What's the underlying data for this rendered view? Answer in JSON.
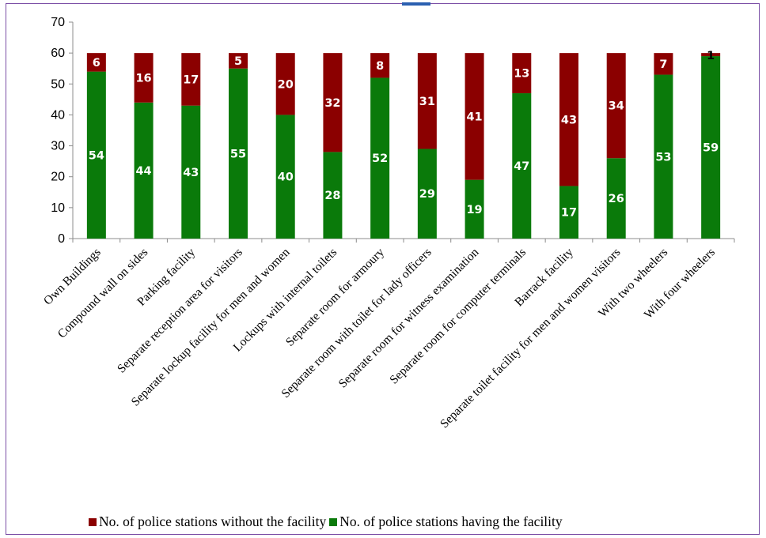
{
  "chart_data": {
    "type": "bar",
    "stacked": true,
    "categories": [
      "Own Buildings",
      "Compound wall on sides",
      "Parking facility",
      "Separate reception area for visitors",
      "Separate lockup facility for men and women",
      "Lockups with internal toilets",
      "Separate room for armoury",
      "Separate room with toilet for lady officers",
      "Separate room for witness examination",
      "Separate room for computer terminals",
      "Barrack facility",
      "Separate toilet facility for men and women visitors",
      "With two wheelers",
      "With four wheelers"
    ],
    "series": [
      {
        "name": "No. of police stations having the facility",
        "color": "#0a7a0a",
        "values": [
          54,
          44,
          43,
          55,
          40,
          28,
          52,
          29,
          19,
          47,
          17,
          26,
          53,
          59
        ]
      },
      {
        "name": "No. of police stations without the facility",
        "color": "#8b0000",
        "values": [
          6,
          16,
          17,
          5,
          20,
          32,
          8,
          31,
          41,
          13,
          43,
          34,
          7,
          1
        ]
      }
    ],
    "ylim": [
      0,
      70
    ],
    "yticks": [
      "0",
      "10",
      "20",
      "30",
      "40",
      "50",
      "60",
      "70"
    ],
    "legend_position": "bottom",
    "grid": false
  },
  "legend": {
    "items": [
      {
        "label": "No. of police stations without the facility",
        "color": "#8b0000"
      },
      {
        "label": "No. of police stations having the facility",
        "color": "#0a7a0a"
      }
    ]
  }
}
